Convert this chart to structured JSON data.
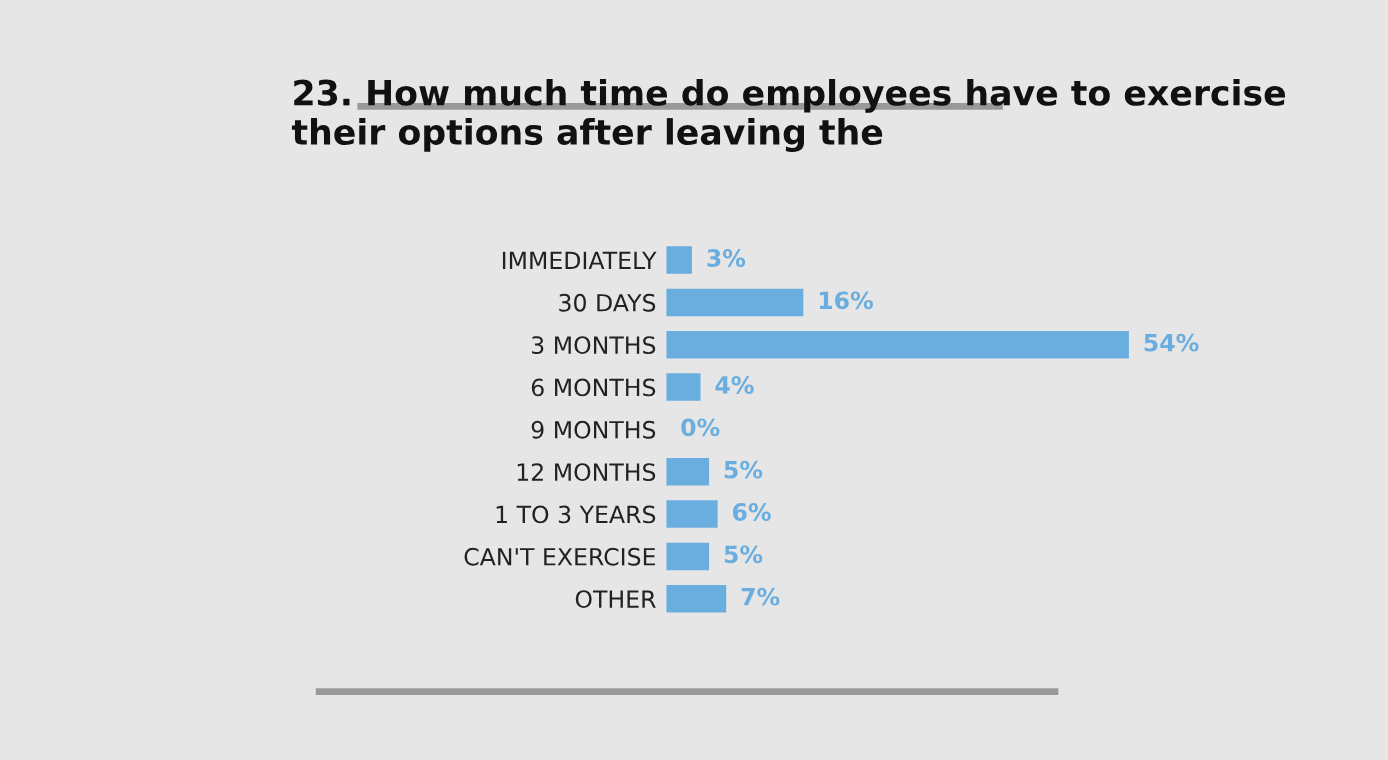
{
  "chart_data": {
    "type": "bar",
    "orientation": "horizontal",
    "title": "23. How much time do employees have to exercise their options after leaving the",
    "categories": [
      "IMMEDIATELY",
      "30 DAYS",
      "3 MONTHS",
      "6 MONTHS",
      "9 MONTHS",
      "12 MONTHS",
      "1 TO 3 YEARS",
      "CAN'T EXERCISE",
      "OTHER"
    ],
    "values": [
      3,
      16,
      54,
      4,
      0,
      5,
      6,
      5,
      7
    ],
    "value_labels": [
      "3%",
      "16%",
      "54%",
      "4%",
      "0%",
      "5%",
      "6%",
      "5%",
      "7%"
    ],
    "color": "#6aaee0",
    "grid": false,
    "legend": false
  }
}
